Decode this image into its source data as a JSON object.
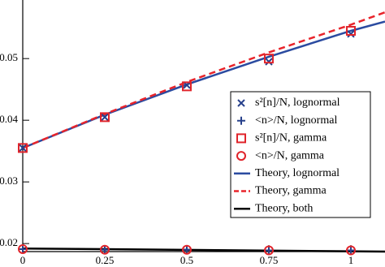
{
  "chart_data": {
    "type": "scatter",
    "xlim": [
      0,
      1.104
    ],
    "ylim": [
      0.0187,
      0.0595
    ],
    "xticks": [
      0,
      0.25,
      0.5,
      0.75,
      1
    ],
    "yticks": [
      0.02,
      0.03,
      0.04,
      0.05
    ],
    "x": [
      0,
      0.25,
      0.5,
      0.75,
      1
    ],
    "legend": "right",
    "series": [
      {
        "name": "s²[n]/N, lognormal",
        "mode": "markers",
        "marker": "x",
        "color": "#27408b",
        "values": [
          0.0355,
          0.0405,
          0.0457,
          0.0495,
          0.054
        ]
      },
      {
        "name": "<n>/N, lognormal",
        "mode": "markers",
        "marker": "plus",
        "color": "#27408b",
        "values": [
          0.0191,
          0.019,
          0.019,
          0.0189,
          0.0189
        ]
      },
      {
        "name": "s²[n]/N, gamma",
        "mode": "markers",
        "marker": "square",
        "color": "#e0242b",
        "values": [
          0.0355,
          0.0405,
          0.0455,
          0.05,
          0.0545
        ]
      },
      {
        "name": "<n>/N, gamma",
        "mode": "markers",
        "marker": "circle",
        "color": "#e0242b",
        "values": [
          0.0191,
          0.019,
          0.019,
          0.0189,
          0.0189
        ]
      },
      {
        "name": "Theory, lognormal",
        "mode": "lines",
        "dash": false,
        "color": "#2b4ba0",
        "x": [
          0,
          0.25,
          0.5,
          0.75,
          1,
          1.104
        ],
        "values": [
          0.0355,
          0.0409,
          0.0458,
          0.0503,
          0.0545,
          0.056
        ]
      },
      {
        "name": "Theory, gamma",
        "mode": "lines",
        "dash": true,
        "color": "#e8242b",
        "x": [
          0,
          0.25,
          0.5,
          0.75,
          1,
          1.104
        ],
        "values": [
          0.0355,
          0.041,
          0.0462,
          0.051,
          0.0555,
          0.0575
        ]
      },
      {
        "name": "Theory, both",
        "mode": "lines",
        "dash": false,
        "color": "#000000",
        "x": [
          0,
          1.104
        ],
        "values": [
          0.0192,
          0.0187
        ]
      }
    ]
  }
}
